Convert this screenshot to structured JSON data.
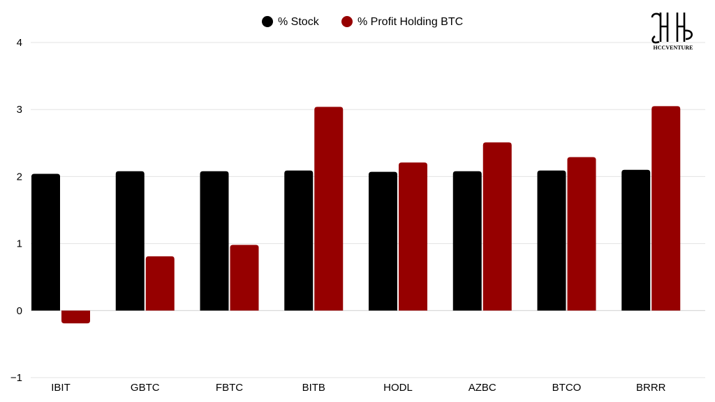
{
  "chart_data": {
    "type": "bar",
    "categories": [
      "IBIT",
      "GBTC",
      "FBTC",
      "BITB",
      "HODL",
      "AZBC",
      "BTCO",
      "BRRR"
    ],
    "series": [
      {
        "name": "% Stock",
        "color": "#000000",
        "values": [
          2.04,
          2.08,
          2.08,
          2.09,
          2.07,
          2.08,
          2.09,
          2.1
        ]
      },
      {
        "name": "% Profit Holding BTC",
        "color": "#960000",
        "values": [
          -0.19,
          0.81,
          0.98,
          3.04,
          2.21,
          2.51,
          2.29,
          3.05
        ]
      }
    ],
    "yticks": [
      -1,
      0,
      1,
      2,
      3,
      4
    ],
    "ylim": [
      -1,
      4
    ],
    "grid": true,
    "legend_position": "top-center"
  },
  "logo": {
    "text": "HCCVENTURE",
    "icon": "hh-monogram-logo"
  }
}
